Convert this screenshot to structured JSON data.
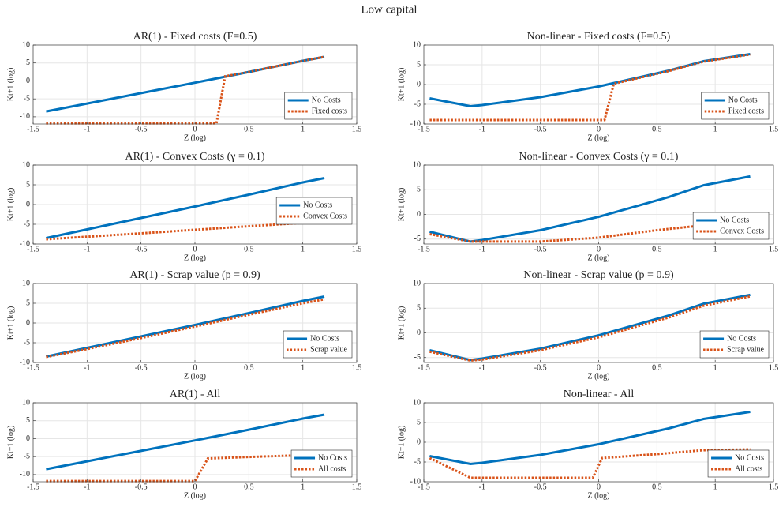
{
  "title": "Low capital",
  "chart_data": [
    {
      "type": "line",
      "title": "AR(1) - Fixed costs (F=0.5)",
      "xlabel": "Z (log)",
      "ylabel": "Kt+1 (log)",
      "xlim": [
        -1.5,
        1.5
      ],
      "ylim": [
        -12,
        10
      ],
      "xticks": [
        -1.5,
        -1,
        -0.5,
        0,
        0.5,
        1,
        1.5
      ],
      "yticks": [
        -10,
        -5,
        0,
        5,
        10
      ],
      "grid": true,
      "legend": "lower right",
      "series": [
        {
          "name": "No Costs",
          "color": "#0072bd",
          "dash": "solid",
          "x": [
            -1.38,
            -1,
            -0.5,
            0,
            0.5,
            1.0,
            1.2
          ],
          "values": [
            -8.5,
            -6.3,
            -3.4,
            -0.5,
            2.5,
            5.6,
            6.7
          ]
        },
        {
          "name": "Fixed costs",
          "color": "#d95319",
          "dash": "dotted",
          "x": [
            -1.38,
            0.2,
            0.28,
            0.5,
            1.0,
            1.2
          ],
          "values": [
            -11.8,
            -11.8,
            1.3,
            2.5,
            5.6,
            6.7
          ]
        }
      ]
    },
    {
      "type": "line",
      "title": "Non-linear - Fixed costs (F=0.5)",
      "xlabel": "Z (log)",
      "ylabel": "Kt+1 (log)",
      "xlim": [
        -1.5,
        1.5
      ],
      "ylim": [
        -10,
        10
      ],
      "xticks": [
        -1.5,
        -1,
        -0.5,
        0,
        0.5,
        1,
        1.5
      ],
      "yticks": [
        -10,
        -5,
        0,
        5,
        10
      ],
      "grid": true,
      "legend": "lower right",
      "series": [
        {
          "name": "No Costs",
          "color": "#0072bd",
          "dash": "solid",
          "x": [
            -1.45,
            -1.1,
            -1,
            -0.5,
            0,
            0.6,
            0.9,
            1.3
          ],
          "values": [
            -3.5,
            -5.5,
            -5.2,
            -3.2,
            -0.5,
            3.5,
            5.9,
            7.7
          ]
        },
        {
          "name": "Fixed costs",
          "color": "#d95319",
          "dash": "dotted",
          "x": [
            -1.45,
            0.05,
            0.13,
            0.6,
            0.9,
            1.3
          ],
          "values": [
            -9,
            -9,
            0.2,
            3.4,
            5.8,
            7.6
          ]
        }
      ]
    },
    {
      "type": "line",
      "title": "AR(1) - Convex Costs (γ = 0.1)",
      "xlabel": "Z (log)",
      "ylabel": "Kt+1 (log)",
      "xlim": [
        -1.5,
        1.5
      ],
      "ylim": [
        -10,
        10
      ],
      "xticks": [
        -1.5,
        -1,
        -0.5,
        0,
        0.5,
        1,
        1.5
      ],
      "yticks": [
        -10,
        -5,
        0,
        5,
        10
      ],
      "grid": true,
      "legend": "right",
      "series": [
        {
          "name": "No Costs",
          "color": "#0072bd",
          "dash": "solid",
          "x": [
            -1.38,
            -1,
            -0.5,
            0,
            0.5,
            1.0,
            1.2
          ],
          "values": [
            -8.5,
            -6.3,
            -3.4,
            -0.5,
            2.5,
            5.6,
            6.7
          ]
        },
        {
          "name": "Convex Costs",
          "color": "#d95319",
          "dash": "dotted",
          "x": [
            -1.38,
            -0.5,
            0,
            0.5,
            1.2
          ],
          "values": [
            -8.8,
            -7.3,
            -6.4,
            -5.5,
            -4.3
          ]
        }
      ]
    },
    {
      "type": "line",
      "title": "Non-linear - Convex Costs (γ = 0.1)",
      "xlabel": "Z (log)",
      "ylabel": "Kt+1 (log)",
      "xlim": [
        -1.5,
        1.5
      ],
      "ylim": [
        -6,
        10
      ],
      "xticks": [
        -1.5,
        -1,
        -0.5,
        0,
        0.5,
        1,
        1.5
      ],
      "yticks": [
        -5,
        0,
        5,
        10
      ],
      "grid": true,
      "legend": "lower right",
      "series": [
        {
          "name": "No Costs",
          "color": "#0072bd",
          "dash": "solid",
          "x": [
            -1.45,
            -1.1,
            -1,
            -0.5,
            0,
            0.6,
            0.9,
            1.3
          ],
          "values": [
            -3.5,
            -5.5,
            -5.2,
            -3.2,
            -0.5,
            3.5,
            5.9,
            7.7
          ]
        },
        {
          "name": "Convex Costs",
          "color": "#d95319",
          "dash": "dotted",
          "x": [
            -1.45,
            -1.1,
            -0.5,
            0,
            0.5,
            0.9,
            1.3
          ],
          "values": [
            -4,
            -5.5,
            -5.5,
            -4.7,
            -3.2,
            -2.2,
            -1.8
          ]
        }
      ]
    },
    {
      "type": "line",
      "title": "AR(1) - Scrap value (p = 0.9)",
      "xlabel": "Z (log)",
      "ylabel": "Kt+1 (log)",
      "xlim": [
        -1.5,
        1.5
      ],
      "ylim": [
        -10,
        10
      ],
      "xticks": [
        -1.5,
        -1,
        -0.5,
        0,
        0.5,
        1,
        1.5
      ],
      "yticks": [
        -10,
        -5,
        0,
        5,
        10
      ],
      "grid": true,
      "legend": "lower right",
      "series": [
        {
          "name": "No Costs",
          "color": "#0072bd",
          "dash": "solid",
          "x": [
            -1.38,
            -1,
            -0.5,
            0,
            0.5,
            1.0,
            1.2
          ],
          "values": [
            -8.5,
            -6.3,
            -3.4,
            -0.5,
            2.5,
            5.6,
            6.7
          ]
        },
        {
          "name": "Scrap value",
          "color": "#d95319",
          "dash": "dotted",
          "x": [
            -1.38,
            -1,
            -0.5,
            0,
            0.5,
            1.0,
            1.2
          ],
          "values": [
            -8.6,
            -6.6,
            -3.8,
            -0.9,
            2.1,
            5.0,
            6.0
          ]
        }
      ]
    },
    {
      "type": "line",
      "title": "Non-linear - Scrap value (p = 0.9)",
      "xlabel": "Z (log)",
      "ylabel": "Kt+1 (log)",
      "xlim": [
        -1.5,
        1.5
      ],
      "ylim": [
        -6,
        10
      ],
      "xticks": [
        -1.5,
        -1,
        -0.5,
        0,
        0.5,
        1,
        1.5
      ],
      "yticks": [
        -5,
        0,
        5,
        10
      ],
      "grid": true,
      "legend": "lower right",
      "series": [
        {
          "name": "No Costs",
          "color": "#0072bd",
          "dash": "solid",
          "x": [
            -1.45,
            -1.1,
            -1,
            -0.5,
            0,
            0.6,
            0.9,
            1.3
          ],
          "values": [
            -3.5,
            -5.5,
            -5.2,
            -3.2,
            -0.5,
            3.5,
            5.9,
            7.7
          ]
        },
        {
          "name": "Scrap value",
          "color": "#d95319",
          "dash": "dotted",
          "x": [
            -1.45,
            -1.1,
            -1,
            -0.5,
            0,
            0.6,
            0.9,
            1.3
          ],
          "values": [
            -3.8,
            -5.6,
            -5.4,
            -3.5,
            -0.9,
            3.1,
            5.5,
            7.4
          ]
        }
      ]
    },
    {
      "type": "line",
      "title": "AR(1) - All",
      "xlabel": "Z (log)",
      "ylabel": "Kt+1 (log)",
      "xlim": [
        -1.5,
        1.5
      ],
      "ylim": [
        -12,
        10
      ],
      "xticks": [
        -1.5,
        -1,
        -0.5,
        0,
        0.5,
        1,
        1.5
      ],
      "yticks": [
        -10,
        -5,
        0,
        5,
        10
      ],
      "grid": true,
      "legend": "lower right",
      "series": [
        {
          "name": "No Costs",
          "color": "#0072bd",
          "dash": "solid",
          "x": [
            -1.38,
            -1,
            -0.5,
            0,
            0.5,
            1.0,
            1.2
          ],
          "values": [
            -8.5,
            -6.3,
            -3.4,
            -0.5,
            2.5,
            5.6,
            6.7
          ]
        },
        {
          "name": "All costs",
          "color": "#d95319",
          "dash": "dotted",
          "x": [
            -1.38,
            0,
            0.12,
            0.5,
            1.0,
            1.2
          ],
          "values": [
            -11.8,
            -11.8,
            -5.5,
            -5.1,
            -4.6,
            -4.4
          ]
        }
      ]
    },
    {
      "type": "line",
      "title": "Non-linear - All",
      "xlabel": "Z (log)",
      "ylabel": "Kt+1 (log)",
      "xlim": [
        -1.5,
        1.5
      ],
      "ylim": [
        -10,
        10
      ],
      "xticks": [
        -1.5,
        -1,
        -0.5,
        0,
        0.5,
        1,
        1.5
      ],
      "yticks": [
        -10,
        -5,
        0,
        5,
        10
      ],
      "grid": true,
      "legend": "lower right",
      "series": [
        {
          "name": "No Costs",
          "color": "#0072bd",
          "dash": "solid",
          "x": [
            -1.45,
            -1.1,
            -1,
            -0.5,
            0,
            0.6,
            0.9,
            1.3
          ],
          "values": [
            -3.5,
            -5.5,
            -5.2,
            -3.2,
            -0.5,
            3.5,
            5.9,
            7.7
          ]
        },
        {
          "name": "All costs",
          "color": "#d95319",
          "dash": "dotted",
          "x": [
            -1.45,
            -1.1,
            -0.5,
            -0.05,
            0.03,
            0.5,
            0.9,
            1.3
          ],
          "values": [
            -4,
            -9,
            -9,
            -9,
            -4,
            -3,
            -2,
            -1.8
          ]
        }
      ]
    }
  ]
}
